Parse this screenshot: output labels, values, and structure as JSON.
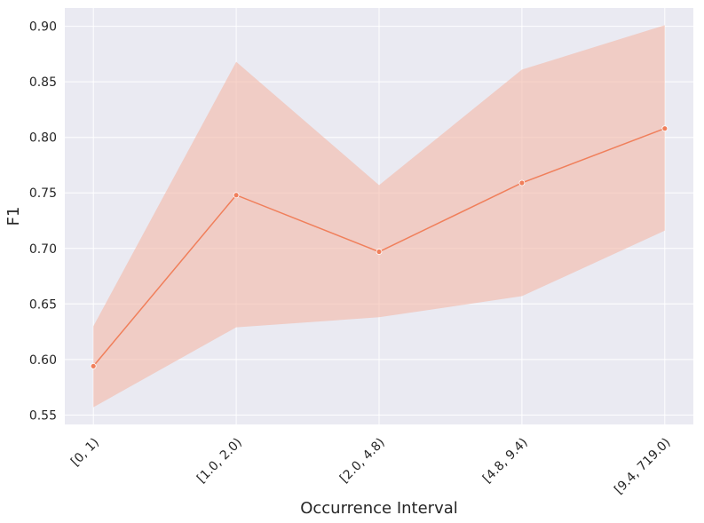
{
  "chart_data": {
    "type": "line",
    "title": "",
    "xlabel": "Occurrence Interval",
    "ylabel": "F1",
    "categories": [
      "[0, 1)",
      "[1.0, 2.0)",
      "[2.0, 4.8)",
      "[4.8, 9.4)",
      "[9.4, 719.0)"
    ],
    "series": [
      {
        "values": [
          0.594,
          0.748,
          0.697,
          0.759,
          0.808
        ],
        "ci_lower": [
          0.557,
          0.629,
          0.638,
          0.657,
          0.716
        ],
        "ci_upper": [
          0.63,
          0.868,
          0.757,
          0.861,
          0.901
        ]
      }
    ],
    "yticks": [
      "0.55",
      "0.60",
      "0.65",
      "0.70",
      "0.75",
      "0.80",
      "0.85",
      "0.90"
    ],
    "ytick_values": [
      0.55,
      0.6,
      0.65,
      0.7,
      0.75,
      0.8,
      0.85,
      0.9
    ],
    "ylim": [
      0.5415,
      0.9165
    ],
    "grid": true,
    "colors": {
      "background": "#eaeaf2",
      "grid": "#ffffff",
      "line": "#f07f5b",
      "band": "#f4b8a6",
      "text": "#262626"
    }
  }
}
